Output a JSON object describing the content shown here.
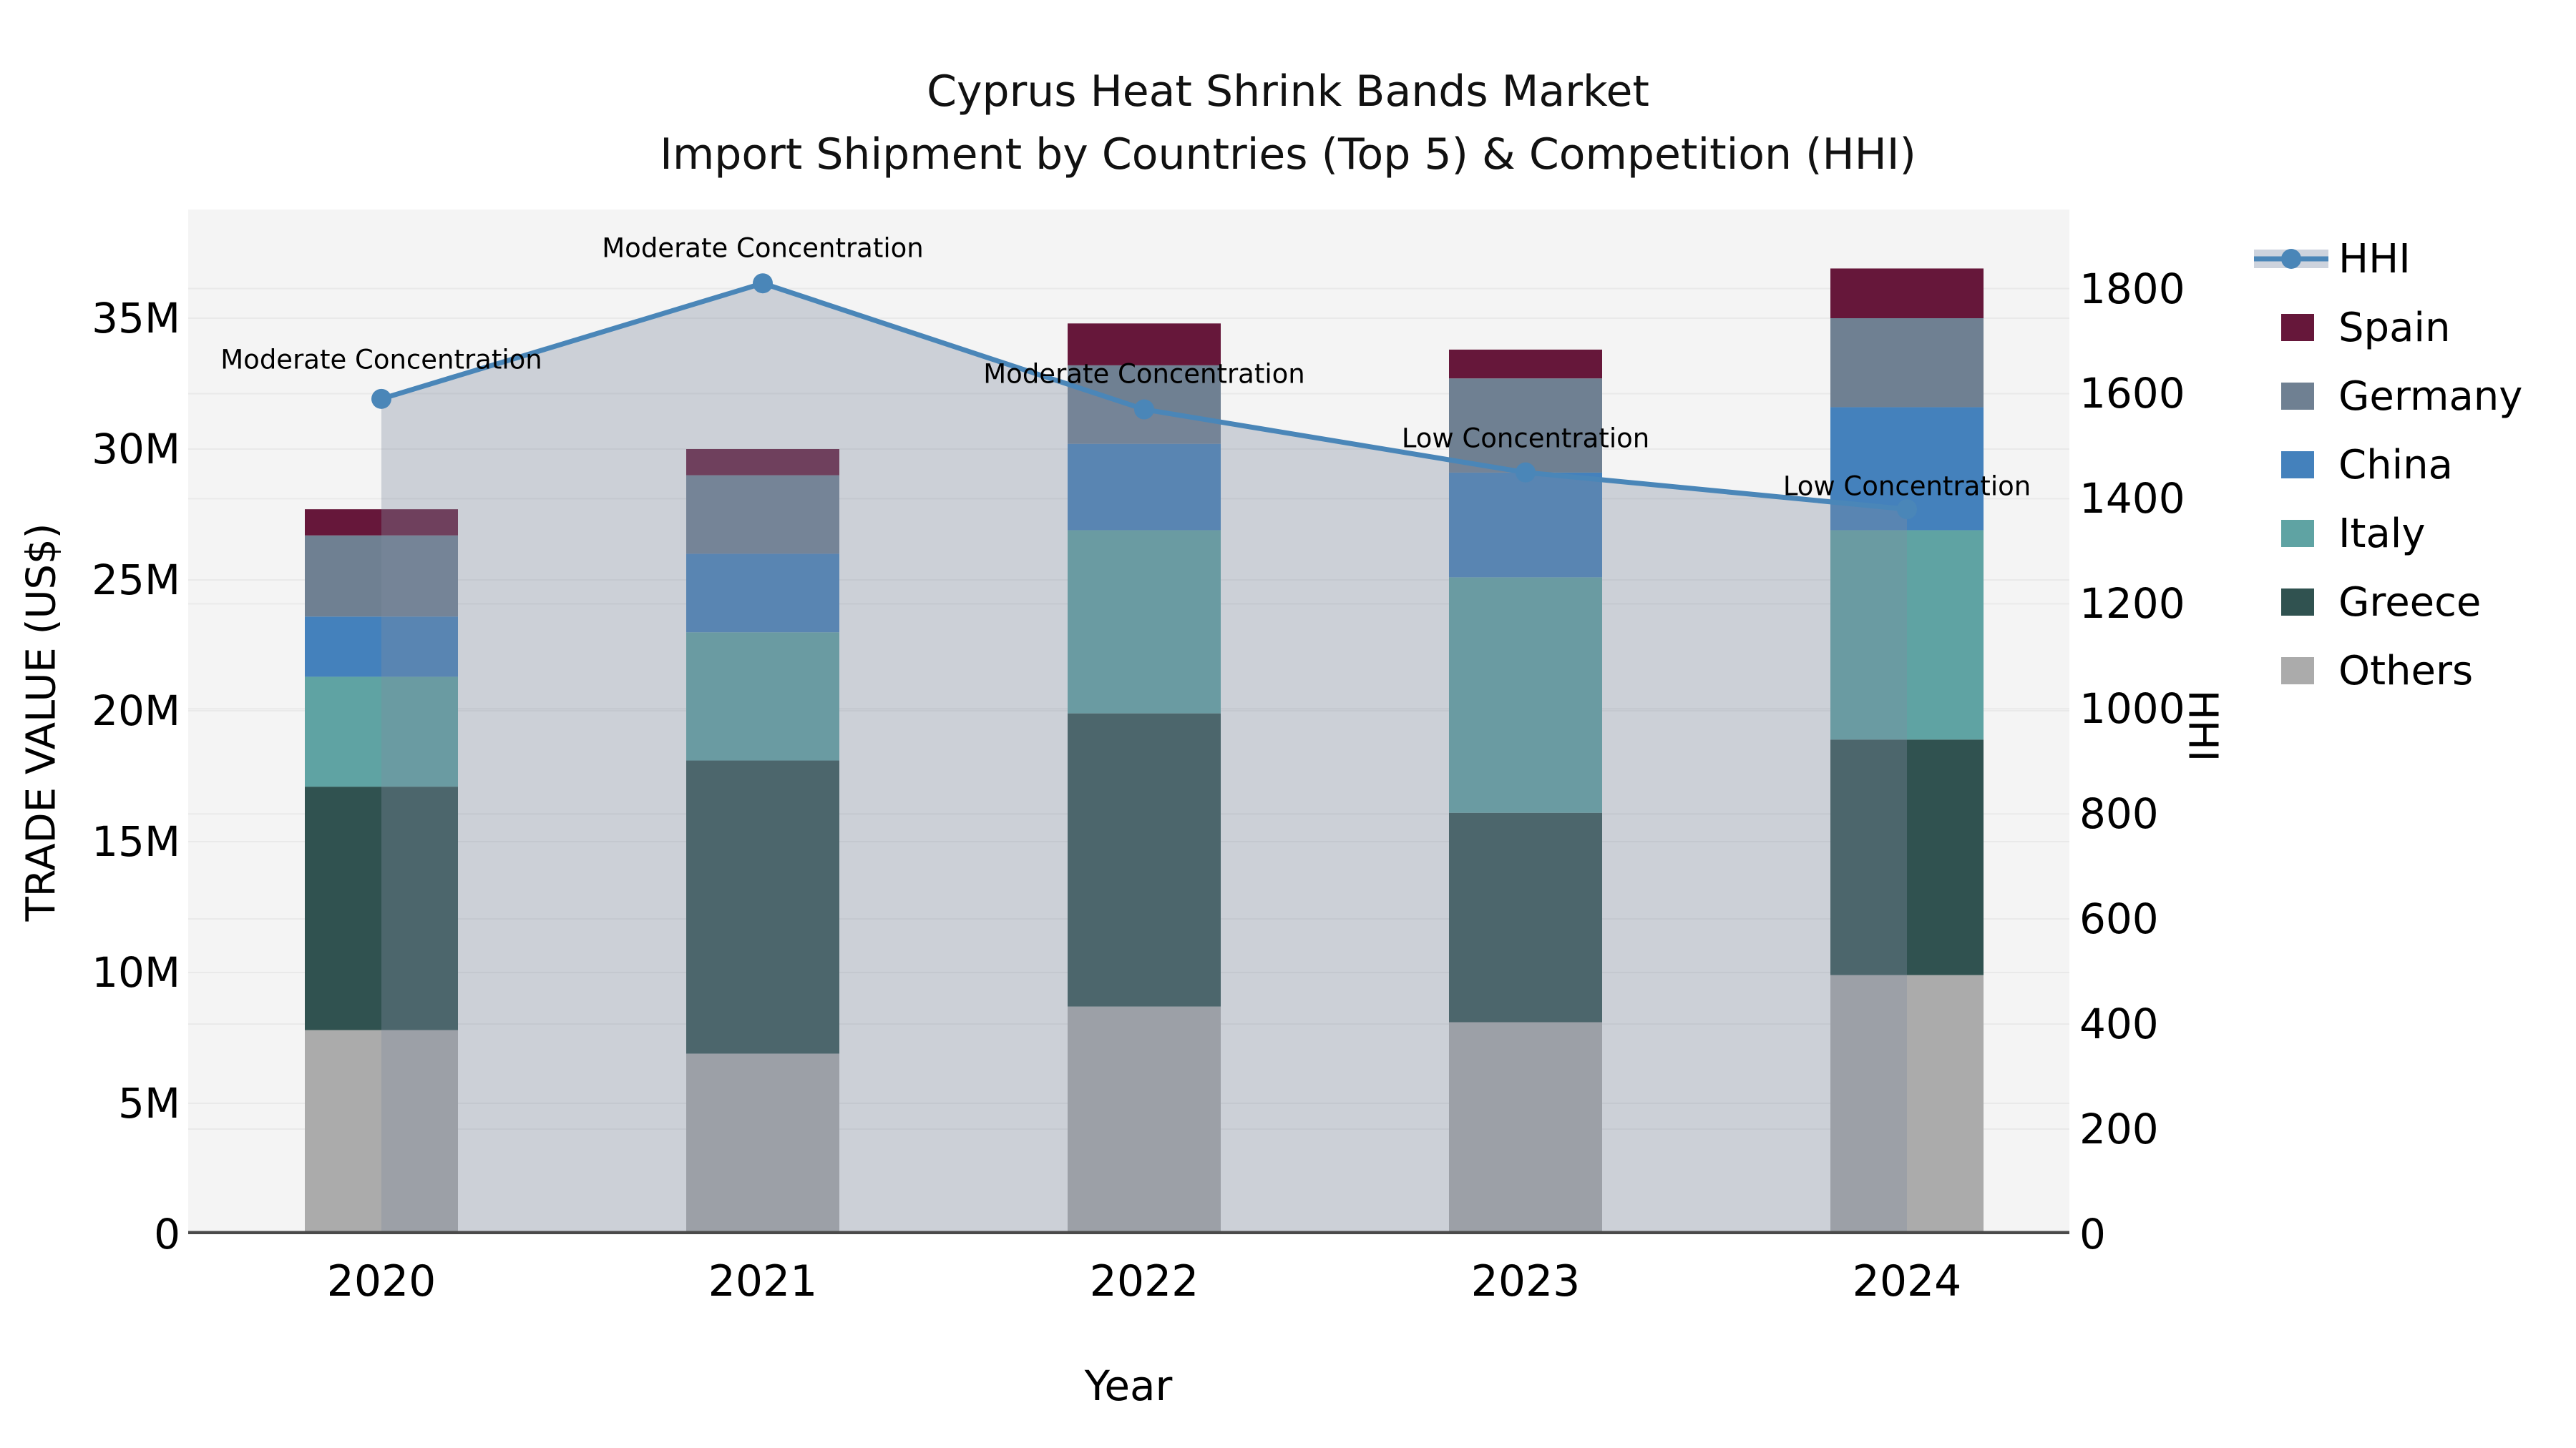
{
  "title": {
    "line1": "Cyprus Heat Shrink Bands Market",
    "line2": "Import Shipment by Countries (Top 5) & Competition (HHI)"
  },
  "axes": {
    "x": {
      "label": "Year",
      "tick_labels": [
        "2020",
        "2021",
        "2022",
        "2023",
        "2024"
      ]
    },
    "y_left": {
      "label": "TRADE VALUE (US$)",
      "tick_labels": [
        "0",
        "5M",
        "10M",
        "15M",
        "20M",
        "25M",
        "30M",
        "35M"
      ],
      "tick_values": [
        0,
        5,
        10,
        15,
        20,
        25,
        30,
        35
      ],
      "range": [
        0,
        39.15
      ]
    },
    "y_right": {
      "label": "HHI",
      "tick_labels": [
        "0",
        "200",
        "400",
        "600",
        "800",
        "1000",
        "1200",
        "1400",
        "1600",
        "1800"
      ],
      "tick_values": [
        0,
        200,
        400,
        600,
        800,
        1000,
        1200,
        1400,
        1600,
        1800
      ],
      "range": [
        0,
        1950
      ]
    }
  },
  "colors": {
    "plot_background": "#f4f4f4",
    "grid": "#e9e9e9",
    "spine": "#4a4a4a",
    "hhi_line": "#4A86B8",
    "hhi_area_fill": "rgba(130,140,160,0.35)",
    "hhi_legend_band": "#CDD3DD",
    "text": "#000000"
  },
  "legend": {
    "position": "right",
    "entries": [
      "HHI",
      "Spain",
      "Germany",
      "China",
      "Italy",
      "Greece",
      "Others"
    ]
  },
  "chart_data": {
    "type": "stacked-bar+line",
    "categories": [
      "2020",
      "2021",
      "2022",
      "2023",
      "2024"
    ],
    "stack_order": "bottom-to-top",
    "series": [
      {
        "name": "Others",
        "color": "#ABABAB",
        "values": [
          7.8,
          6.9,
          8.7,
          8.1,
          9.9
        ]
      },
      {
        "name": "Greece",
        "color": "#305250",
        "values": [
          9.3,
          11.2,
          11.2,
          8.0,
          9.0
        ]
      },
      {
        "name": "Italy",
        "color": "#5FA3A3",
        "values": [
          4.2,
          4.9,
          7.0,
          9.0,
          8.0
        ]
      },
      {
        "name": "China",
        "color": "#4481BC",
        "values": [
          2.3,
          3.0,
          3.3,
          4.0,
          4.7
        ]
      },
      {
        "name": "Germany",
        "color": "#6F8092",
        "values": [
          3.1,
          3.0,
          3.0,
          3.6,
          3.4
        ]
      },
      {
        "name": "Spain",
        "color": "#66173A",
        "values": [
          1.0,
          1.0,
          1.6,
          1.1,
          1.9
        ]
      }
    ],
    "bar_totals": [
      27.7,
      30.0,
      34.8,
      33.8,
      36.9
    ],
    "values_unit": "M",
    "line_series": {
      "name": "HHI",
      "axis": "right",
      "color": "#4A86B8",
      "marker": "circle",
      "area_fill": "rgba(130,140,160,0.35)",
      "values": [
        1590,
        1810,
        1570,
        1450,
        1380
      ]
    },
    "annotations": [
      {
        "text": "Moderate Concentration",
        "x": "2020",
        "y_hhi": 1665
      },
      {
        "text": "Moderate Concentration",
        "x": "2021",
        "y_hhi": 1877
      },
      {
        "text": "Moderate Concentration",
        "x": "2022",
        "y_hhi": 1637
      },
      {
        "text": "Low Concentration",
        "x": "2023",
        "y_hhi": 1515
      },
      {
        "text": "Low Concentration",
        "x": "2024",
        "y_hhi": 1424
      }
    ],
    "grid": true,
    "legend_position": "right"
  }
}
